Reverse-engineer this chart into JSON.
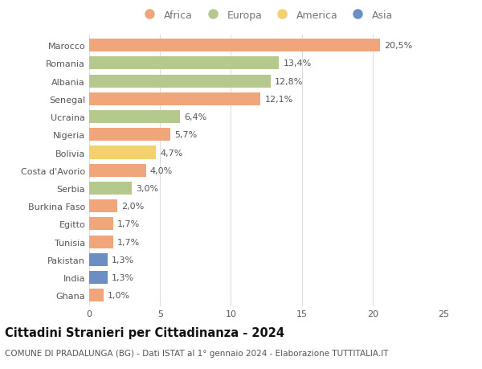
{
  "countries": [
    "Marocco",
    "Romania",
    "Albania",
    "Senegal",
    "Ucraina",
    "Nigeria",
    "Bolivia",
    "Costa d'Avorio",
    "Serbia",
    "Burkina Faso",
    "Egitto",
    "Tunisia",
    "Pakistan",
    "India",
    "Ghana"
  ],
  "values": [
    20.5,
    13.4,
    12.8,
    12.1,
    6.4,
    5.7,
    4.7,
    4.0,
    3.0,
    2.0,
    1.7,
    1.7,
    1.3,
    1.3,
    1.0
  ],
  "labels": [
    "20,5%",
    "13,4%",
    "12,8%",
    "12,1%",
    "6,4%",
    "5,7%",
    "4,7%",
    "4,0%",
    "3,0%",
    "2,0%",
    "1,7%",
    "1,7%",
    "1,3%",
    "1,3%",
    "1,0%"
  ],
  "continents": [
    "Africa",
    "Europa",
    "Europa",
    "Africa",
    "Europa",
    "Africa",
    "America",
    "Africa",
    "Europa",
    "Africa",
    "Africa",
    "Africa",
    "Asia",
    "Asia",
    "Africa"
  ],
  "colors": {
    "Africa": "#F0A57A",
    "Europa": "#B5C98E",
    "America": "#F5D06E",
    "Asia": "#6B8FC5"
  },
  "legend_order": [
    "Africa",
    "Europa",
    "America",
    "Asia"
  ],
  "title": "Cittadini Stranieri per Cittadinanza - 2024",
  "subtitle": "COMUNE DI PRADALUNGA (BG) - Dati ISTAT al 1° gennaio 2024 - Elaborazione TUTTITALIA.IT",
  "xlim": [
    0,
    25
  ],
  "xticks": [
    0,
    5,
    10,
    15,
    20,
    25
  ],
  "bg_color": "#ffffff",
  "grid_color": "#dddddd",
  "bar_height": 0.72,
  "label_fontsize": 8,
  "title_fontsize": 10.5,
  "subtitle_fontsize": 7.5,
  "ytick_fontsize": 8,
  "xtick_fontsize": 8,
  "legend_fontsize": 9
}
